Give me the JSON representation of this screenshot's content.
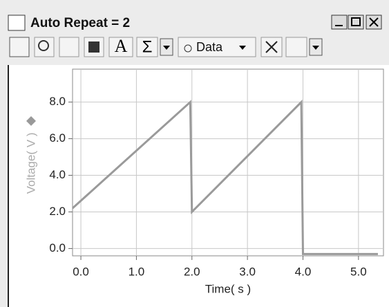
{
  "window": {
    "title": "Auto Repeat = 2"
  },
  "toolbar": {
    "font_button": "A",
    "stats_button": "Σ",
    "data_menu": "Data"
  },
  "chart_data": {
    "type": "line",
    "x_label": "Time( s )",
    "y_label": "Voltage( V )",
    "x": [
      -0.15,
      1.97,
      2.0,
      3.97,
      4.0,
      5.35
    ],
    "series": [
      {
        "name": "Voltage",
        "color": "#9a9a9a",
        "values": [
          2.2,
          8.0,
          2.0,
          8.0,
          -0.3,
          -0.3
        ]
      }
    ],
    "xlim": [
      -0.15,
      5.45
    ],
    "ylim": [
      -0.4,
      9.8
    ],
    "xticks": [
      {
        "value": 0,
        "label": "0.0"
      },
      {
        "value": 1,
        "label": "1.0"
      },
      {
        "value": 2,
        "label": "2.0"
      },
      {
        "value": 3,
        "label": "3.0"
      },
      {
        "value": 4,
        "label": "4.0"
      },
      {
        "value": 5,
        "label": "5.0"
      }
    ],
    "yticks": [
      {
        "value": 0,
        "label": "0.0"
      },
      {
        "value": 2,
        "label": "2.0"
      },
      {
        "value": 4,
        "label": "4.0"
      },
      {
        "value": 6,
        "label": "6.0"
      },
      {
        "value": 8,
        "label": "8.0"
      }
    ],
    "grid": true
  }
}
